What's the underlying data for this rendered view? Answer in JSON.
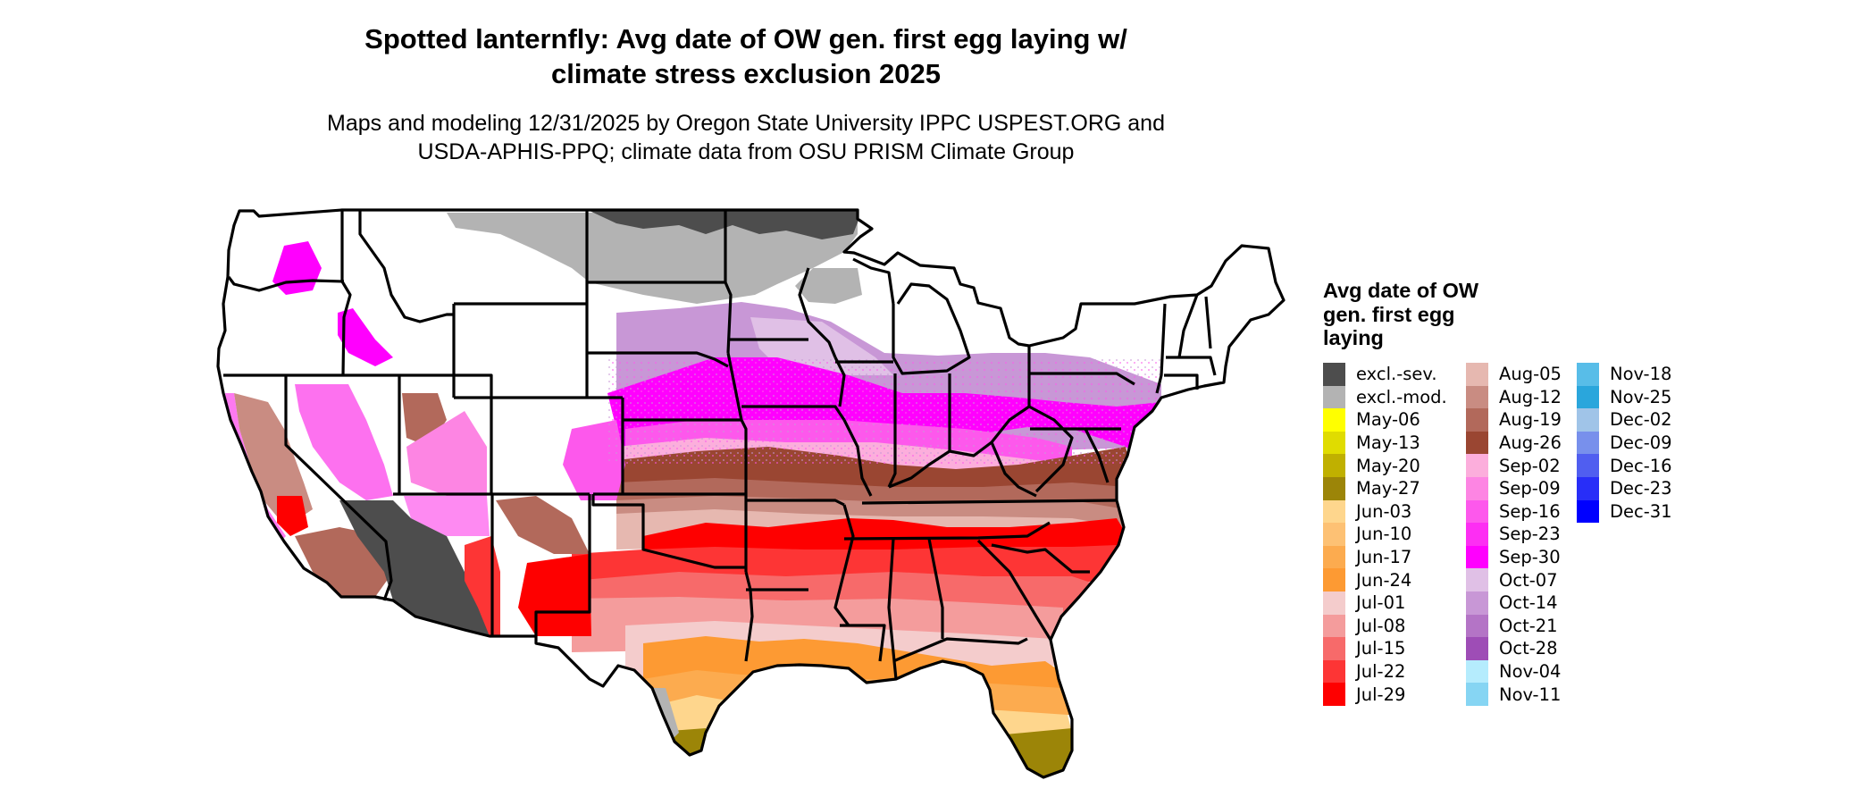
{
  "header": {
    "title_line1": "Spotted lanternfly: Avg date of OW gen. first egg laying w/",
    "title_line2": "climate stress exclusion 2025",
    "subtitle_line1": "Maps and modeling 12/31/2025 by Oregon State University IPPC USPEST.ORG and",
    "subtitle_line2": "USDA-APHIS-PPQ; climate data from OSU PRISM Climate Group"
  },
  "chart_data": {
    "type": "heatmap",
    "title": "Spotted lanternfly: Avg date of OW gen. first egg laying w/ climate stress exclusion 2025",
    "region": "Contiguous United States",
    "legend": {
      "title_line1": "Avg date of OW",
      "title_line2": "gen. first egg",
      "title_line3": "laying",
      "placement": "right",
      "columns": [
        [
          {
            "label": "excl.-sev.",
            "color": "#4d4d4d"
          },
          {
            "label": "excl.-mod.",
            "color": "#b3b3b3"
          },
          {
            "label": "May-06",
            "color": "#ffff00"
          },
          {
            "label": "May-13",
            "color": "#e0dc00"
          },
          {
            "label": "May-20",
            "color": "#c0b000"
          },
          {
            "label": "May-27",
            "color": "#9c8508"
          },
          {
            "label": "Jun-03",
            "color": "#fed68d"
          },
          {
            "label": "Jun-10",
            "color": "#fdc174"
          },
          {
            "label": "Jun-17",
            "color": "#fcab4f"
          },
          {
            "label": "Jun-24",
            "color": "#fd9a33"
          },
          {
            "label": "Jul-01",
            "color": "#f4cccc"
          },
          {
            "label": "Jul-08",
            "color": "#f49c9c"
          },
          {
            "label": "Jul-15",
            "color": "#f76a6a"
          },
          {
            "label": "Jul-22",
            "color": "#fd3535"
          },
          {
            "label": "Jul-29",
            "color": "#fe0000"
          }
        ],
        [
          {
            "label": "Aug-05",
            "color": "#e6b8b0"
          },
          {
            "label": "Aug-12",
            "color": "#c98c82"
          },
          {
            "label": "Aug-19",
            "color": "#b2695b"
          },
          {
            "label": "Aug-26",
            "color": "#9a4632"
          },
          {
            "label": "Sep-02",
            "color": "#fcaedc"
          },
          {
            "label": "Sep-09",
            "color": "#fd85e3"
          },
          {
            "label": "Sep-16",
            "color": "#fd58ec"
          },
          {
            "label": "Sep-23",
            "color": "#fd2ef3"
          },
          {
            "label": "Sep-30",
            "color": "#ff00fe"
          },
          {
            "label": "Oct-07",
            "color": "#e0c0e6"
          },
          {
            "label": "Oct-14",
            "color": "#c897d6"
          },
          {
            "label": "Oct-21",
            "color": "#b474c6"
          },
          {
            "label": "Oct-28",
            "color": "#9e4db6"
          },
          {
            "label": "Nov-04",
            "color": "#b5ecfd"
          },
          {
            "label": "Nov-11",
            "color": "#86d5f3"
          }
        ],
        [
          {
            "label": "Nov-18",
            "color": "#58bde8"
          },
          {
            "label": "Nov-25",
            "color": "#2aa6dc"
          },
          {
            "label": "Dec-02",
            "color": "#a0c4e8"
          },
          {
            "label": "Dec-09",
            "color": "#7890ec"
          },
          {
            "label": "Dec-16",
            "color": "#505ef0"
          },
          {
            "label": "Dec-23",
            "color": "#282ef8"
          },
          {
            "label": "Dec-31",
            "color": "#0000ff"
          }
        ]
      ]
    }
  }
}
